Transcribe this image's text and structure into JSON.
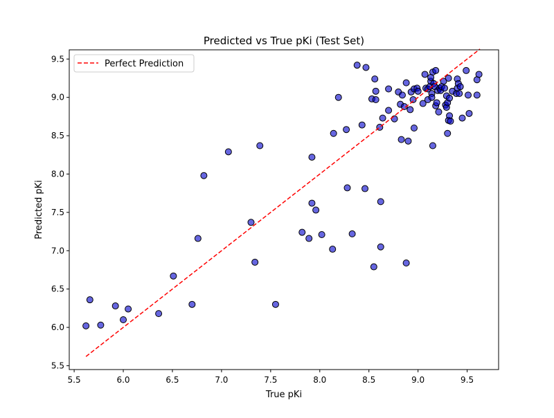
{
  "chart_data": {
    "type": "scatter",
    "title": "Predicted vs True pKi (Test Set)",
    "xlabel": "True pKi",
    "ylabel": "Predicted pKi",
    "xlim": [
      5.45,
      9.82
    ],
    "ylim": [
      5.45,
      9.62
    ],
    "xticks": [
      5.5,
      6.0,
      6.5,
      7.0,
      7.5,
      8.0,
      8.5,
      9.0,
      9.5
    ],
    "yticks": [
      5.5,
      6.0,
      6.5,
      7.0,
      7.5,
      8.0,
      8.5,
      9.0,
      9.5
    ],
    "grid": false,
    "legend": {
      "position": "top-left",
      "entries": [
        "Perfect Prediction"
      ]
    },
    "colors": {
      "point_fill": "#0000cc",
      "point_edge": "#000000",
      "reference_line": "#ff0000"
    },
    "reference_line": {
      "name": "Perfect Prediction",
      "x": [
        5.62,
        9.63
      ],
      "y": [
        5.62,
        9.63
      ]
    },
    "series": [
      {
        "points": [
          [
            5.62,
            6.02
          ],
          [
            5.66,
            6.36
          ],
          [
            5.77,
            6.03
          ],
          [
            5.92,
            6.28
          ],
          [
            6.0,
            6.1
          ],
          [
            6.05,
            6.24
          ],
          [
            6.36,
            6.18
          ],
          [
            6.51,
            6.67
          ],
          [
            6.7,
            6.3
          ],
          [
            6.76,
            7.16
          ],
          [
            6.82,
            7.98
          ],
          [
            7.07,
            8.29
          ],
          [
            7.3,
            7.37
          ],
          [
            7.34,
            6.85
          ],
          [
            7.39,
            8.37
          ],
          [
            7.55,
            6.3
          ],
          [
            7.82,
            7.24
          ],
          [
            7.89,
            7.16
          ],
          [
            7.92,
            7.62
          ],
          [
            7.92,
            8.22
          ],
          [
            7.96,
            7.53
          ],
          [
            8.02,
            7.21
          ],
          [
            8.13,
            7.02
          ],
          [
            8.14,
            8.53
          ],
          [
            8.19,
            9.0
          ],
          [
            8.27,
            8.58
          ],
          [
            8.28,
            7.82
          ],
          [
            8.33,
            7.22
          ],
          [
            8.38,
            9.42
          ],
          [
            8.43,
            8.64
          ],
          [
            8.46,
            7.81
          ],
          [
            8.47,
            9.39
          ],
          [
            8.53,
            8.98
          ],
          [
            8.55,
            6.79
          ],
          [
            8.56,
            9.24
          ],
          [
            8.57,
            9.08
          ],
          [
            8.57,
            8.97
          ],
          [
            8.61,
            8.61
          ],
          [
            8.62,
            7.64
          ],
          [
            8.62,
            7.05
          ],
          [
            8.64,
            8.73
          ],
          [
            8.7,
            9.11
          ],
          [
            8.7,
            8.83
          ],
          [
            8.76,
            8.72
          ],
          [
            8.8,
            9.07
          ],
          [
            8.82,
            8.91
          ],
          [
            8.83,
            8.45
          ],
          [
            8.84,
            9.03
          ],
          [
            8.86,
            8.88
          ],
          [
            8.88,
            9.19
          ],
          [
            8.88,
            6.84
          ],
          [
            8.9,
            8.43
          ],
          [
            8.92,
            8.84
          ],
          [
            8.93,
            9.07
          ],
          [
            8.95,
            8.97
          ],
          [
            8.96,
            9.11
          ],
          [
            8.96,
            8.6
          ],
          [
            8.99,
            9.12
          ],
          [
            9.0,
            9.08
          ],
          [
            9.05,
            8.92
          ],
          [
            9.07,
            9.3
          ],
          [
            9.08,
            9.12
          ],
          [
            9.1,
            9.11
          ],
          [
            9.1,
            8.97
          ],
          [
            9.12,
            9.14
          ],
          [
            9.13,
            9.21
          ],
          [
            9.13,
            9.26
          ],
          [
            9.14,
            9.05
          ],
          [
            9.14,
            9.0
          ],
          [
            9.15,
            9.33
          ],
          [
            9.15,
            8.37
          ],
          [
            9.16,
            9.18
          ],
          [
            9.17,
            9.14
          ],
          [
            9.18,
            9.35
          ],
          [
            9.18,
            8.89
          ],
          [
            9.19,
            8.93
          ],
          [
            9.2,
            9.09
          ],
          [
            9.21,
            8.81
          ],
          [
            9.22,
            9.12
          ],
          [
            9.23,
            9.09
          ],
          [
            9.24,
            9.14
          ],
          [
            9.26,
            9.21
          ],
          [
            9.27,
            9.12
          ],
          [
            9.28,
            8.9
          ],
          [
            9.29,
            9.02
          ],
          [
            9.29,
            8.87
          ],
          [
            9.3,
            8.93
          ],
          [
            9.3,
            8.53
          ],
          [
            9.31,
            9.25
          ],
          [
            9.31,
            8.7
          ],
          [
            9.32,
            8.76
          ],
          [
            9.32,
            8.99
          ],
          [
            9.33,
            8.69
          ],
          [
            9.35,
            9.08
          ],
          [
            9.39,
            9.05
          ],
          [
            9.4,
            9.12
          ],
          [
            9.4,
            9.24
          ],
          [
            9.41,
            9.18
          ],
          [
            9.42,
            9.05
          ],
          [
            9.43,
            9.14
          ],
          [
            9.45,
            8.73
          ],
          [
            9.49,
            9.35
          ],
          [
            9.51,
            9.03
          ],
          [
            9.52,
            8.79
          ],
          [
            9.6,
            9.23
          ],
          [
            9.6,
            9.03
          ],
          [
            9.62,
            9.3
          ]
        ]
      }
    ]
  }
}
